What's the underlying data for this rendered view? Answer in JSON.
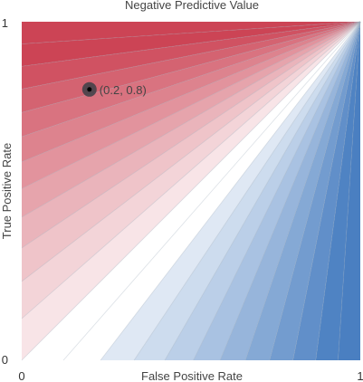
{
  "chart_data": {
    "type": "area",
    "title": "Negative Predictive Value",
    "xlabel": "False Positive Rate",
    "ylabel": "True Positive Rate",
    "xlim": [
      0,
      1
    ],
    "ylim": [
      0,
      1
    ],
    "x_ticks": [
      "0",
      "1"
    ],
    "y_ticks": [
      "0",
      "1"
    ],
    "grid": false,
    "legend": "none",
    "colors": {
      "high": "#4a7fc1",
      "neutral": "#ffffff",
      "low": "#cc4455",
      "boundary": "#9aa8b8"
    },
    "marker": {
      "x": 0.2,
      "y": 0.8,
      "label": "(0.2, 0.8)"
    }
  }
}
